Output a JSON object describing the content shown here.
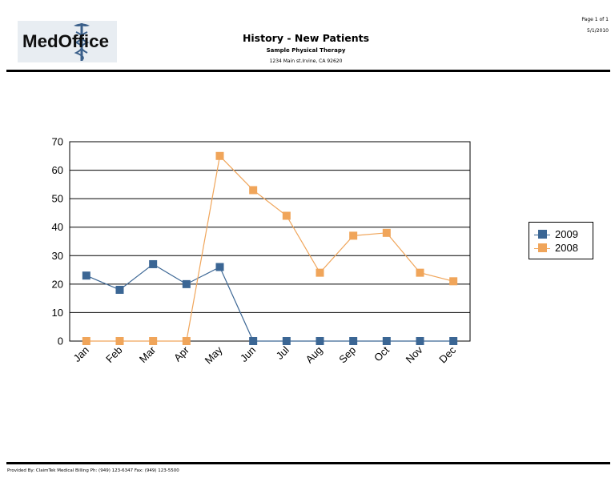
{
  "header": {
    "logo_text": "MedOffice",
    "title": "History - New Patients",
    "subtitle": "Sample Physical Therapy",
    "address": "1234 Main st.Irvine, CA 92620",
    "page_label": "Page 1 of 1",
    "date": "5/1/2010"
  },
  "footer": {
    "text": "Provided By: ClaimTek Medical Billing   Ph: (949) 123-6347 Fax: (949) 123-5500"
  },
  "colors": {
    "series_2009": "#3b6694",
    "series_2008": "#f0a55a"
  },
  "chart_data": {
    "type": "line",
    "title": "",
    "xlabel": "",
    "ylabel": "",
    "categories": [
      "Jan",
      "Feb",
      "Mar",
      "Apr",
      "May",
      "Jun",
      "Jul",
      "Aug",
      "Sep",
      "Oct",
      "Nov",
      "Dec"
    ],
    "ylim": [
      0,
      70
    ],
    "yticks": [
      "0",
      "10",
      "20",
      "30",
      "40",
      "50",
      "60",
      "70"
    ],
    "grid": true,
    "legend_position": "right",
    "series": [
      {
        "name": "2009",
        "values": [
          23,
          18,
          27,
          20,
          26,
          0,
          0,
          0,
          0,
          0,
          0,
          0
        ]
      },
      {
        "name": "2008",
        "values": [
          0,
          0,
          0,
          0,
          65,
          53,
          44,
          24,
          37,
          38,
          24,
          21
        ]
      }
    ]
  }
}
